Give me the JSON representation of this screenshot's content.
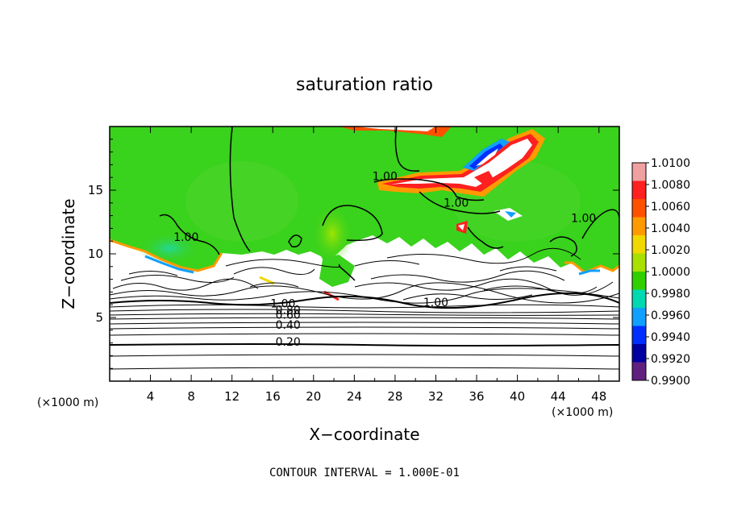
{
  "chart_data": {
    "type": "heatmap",
    "title": "saturation ratio",
    "xlabel": "X−coordinate",
    "ylabel": "Z−coordinate",
    "x_unit": "(×1000 m)",
    "z_unit": "(×1000 m)",
    "xlim": [
      0,
      50
    ],
    "ylim": [
      0,
      20
    ],
    "x_ticks": [
      4,
      8,
      12,
      16,
      20,
      24,
      28,
      32,
      36,
      40,
      44,
      48
    ],
    "y_ticks": [
      5,
      10,
      15
    ],
    "footer": "CONTOUR INTERVAL = 1.000E-01",
    "colorbar": {
      "labels": [
        "1.0100",
        "1.0080",
        "1.0060",
        "1.0040",
        "1.0020",
        "1.0000",
        "0.9980",
        "0.9960",
        "0.9940",
        "0.9920",
        "0.9900"
      ],
      "values": [
        1.01,
        1.008,
        1.006,
        1.004,
        1.002,
        1.0,
        0.998,
        0.996,
        0.994,
        0.992,
        0.99
      ],
      "colors": [
        "#f0a0a0",
        "#ff2020",
        "#ff5000",
        "#ff9a00",
        "#f0d800",
        "#a8e000",
        "#30d000",
        "#00d8b0",
        "#10a0ff",
        "#0030ff",
        "#0000a0",
        "#602080"
      ]
    },
    "contour_labels": [
      {
        "text": "1.00",
        "x": 7.5,
        "z": 11.0
      },
      {
        "text": "1.00",
        "x": 27.0,
        "z": 15.8
      },
      {
        "text": "1.00",
        "x": 34.0,
        "z": 13.7
      },
      {
        "text": "1.00",
        "x": 46.5,
        "z": 12.5
      },
      {
        "text": "1.00",
        "x": 32.0,
        "z": 5.9
      },
      {
        "text": "1.00",
        "x": 17.0,
        "z": 5.8
      },
      {
        "text": "0.80",
        "x": 17.5,
        "z": 5.3
      },
      {
        "text": "0.60",
        "x": 17.5,
        "z": 4.9
      },
      {
        "text": "0.40",
        "x": 17.5,
        "z": 4.1
      },
      {
        "text": "0.20",
        "x": 17.5,
        "z": 2.8
      }
    ],
    "grid": false
  },
  "colors": {
    "supersaturated_green": "#39d21c",
    "subsaturated_white": "#ffffff",
    "contour_line": "#000000"
  }
}
